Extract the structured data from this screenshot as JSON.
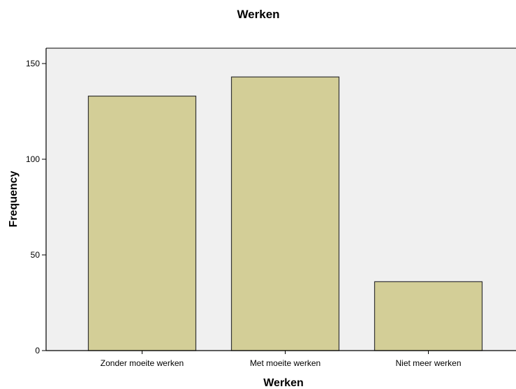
{
  "chart_data": {
    "type": "bar",
    "title": "Werken",
    "xlabel": "Werken",
    "ylabel": "Frequency",
    "categories": [
      "Zonder moeite werken",
      "Met moeite werken",
      "Niet meer werken"
    ],
    "values": [
      133,
      143,
      36
    ],
    "ylim": [
      0,
      160
    ],
    "yticks": [
      0,
      50,
      100,
      150
    ],
    "ytick_labels": [
      "0",
      "50",
      "100",
      "150"
    ],
    "grid": false,
    "legend": "none",
    "colors": {
      "bar_fill": "#d3ce97",
      "bar_stroke": "#333333",
      "plot_background": "#f0f0f0",
      "axis": "#000000"
    }
  }
}
